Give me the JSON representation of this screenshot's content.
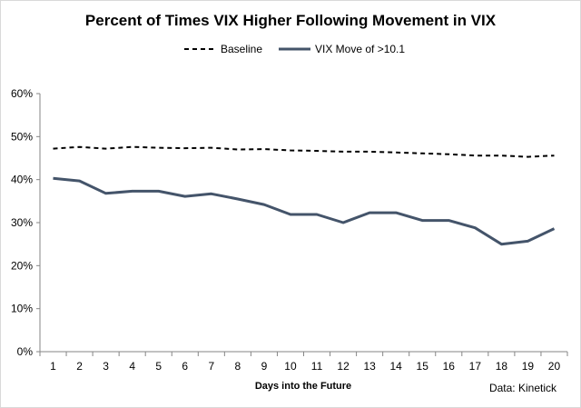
{
  "chart_data": {
    "type": "line",
    "title": "Percent of Times VIX Higher Following Movement in VIX",
    "xlabel": "Days into the Future",
    "ylabel": "",
    "source": "Data: Kinetick",
    "x": [
      1,
      2,
      3,
      4,
      5,
      6,
      7,
      8,
      9,
      10,
      11,
      12,
      13,
      14,
      15,
      16,
      17,
      18,
      19,
      20
    ],
    "x_ticks": [
      "1",
      "2",
      "3",
      "4",
      "5",
      "6",
      "7",
      "8",
      "9",
      "10",
      "11",
      "12",
      "13",
      "14",
      "15",
      "16",
      "17",
      "18",
      "19",
      "20"
    ],
    "ylim": [
      0,
      60
    ],
    "y_ticks": [
      "0%",
      "10%",
      "20%",
      "30%",
      "40%",
      "50%",
      "60%"
    ],
    "y_tick_values": [
      0,
      10,
      20,
      30,
      40,
      50,
      60
    ],
    "grid": false,
    "legend_position": "top",
    "series": [
      {
        "name": "Baseline",
        "style": "dashed",
        "color": "#000000",
        "values": [
          47.2,
          47.6,
          47.2,
          47.6,
          47.4,
          47.3,
          47.4,
          47.0,
          47.1,
          46.8,
          46.7,
          46.5,
          46.5,
          46.3,
          46.1,
          45.9,
          45.6,
          45.6,
          45.3,
          45.6
        ]
      },
      {
        "name": "VIX Move of >10.1",
        "style": "solid",
        "color": "#44546A",
        "values": [
          40.3,
          39.7,
          36.8,
          37.3,
          37.3,
          36.1,
          36.7,
          35.5,
          34.2,
          31.9,
          31.9,
          30.0,
          32.3,
          32.3,
          30.5,
          30.5,
          28.8,
          25.0,
          25.7,
          28.6
        ]
      }
    ]
  }
}
